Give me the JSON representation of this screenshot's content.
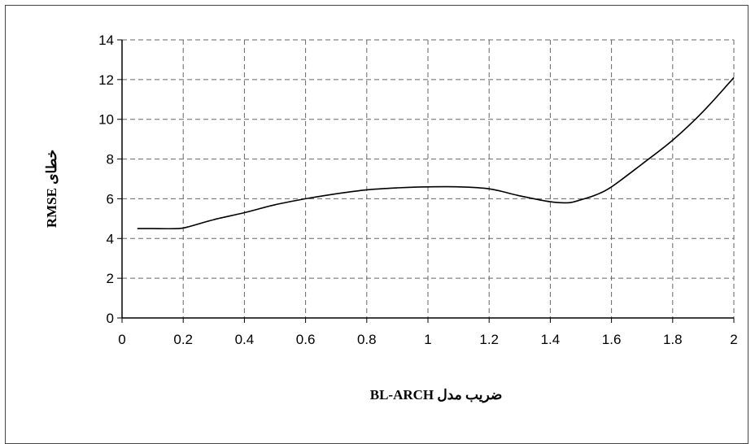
{
  "chart_data": {
    "type": "line",
    "title": "",
    "xlabel": "ضریب مدل BL-ARCH",
    "ylabel": "خطای RMSE",
    "xlim": [
      0,
      2
    ],
    "ylim": [
      0,
      14
    ],
    "x_ticks": [
      "0",
      "0.2",
      "0.4",
      "0.6",
      "0.8",
      "1",
      "1.2",
      "1.4",
      "1.6",
      "1.8",
      "2"
    ],
    "y_ticks": [
      "0",
      "2",
      "4",
      "6",
      "8",
      "10",
      "12",
      "14"
    ],
    "grid": true,
    "legend": "none",
    "series": [
      {
        "color": "#000000",
        "x": [
          0.05,
          0.1,
          0.18,
          0.22,
          0.3,
          0.4,
          0.5,
          0.6,
          0.7,
          0.8,
          0.9,
          1.0,
          1.1,
          1.2,
          1.3,
          1.4,
          1.46,
          1.5,
          1.55,
          1.6,
          1.7,
          1.8,
          1.9,
          2.0
        ],
        "y": [
          4.5,
          4.5,
          4.5,
          4.6,
          4.95,
          5.3,
          5.7,
          6.0,
          6.25,
          6.45,
          6.55,
          6.6,
          6.6,
          6.5,
          6.15,
          5.85,
          5.8,
          5.95,
          6.2,
          6.6,
          7.75,
          8.95,
          10.4,
          12.1
        ]
      }
    ]
  }
}
